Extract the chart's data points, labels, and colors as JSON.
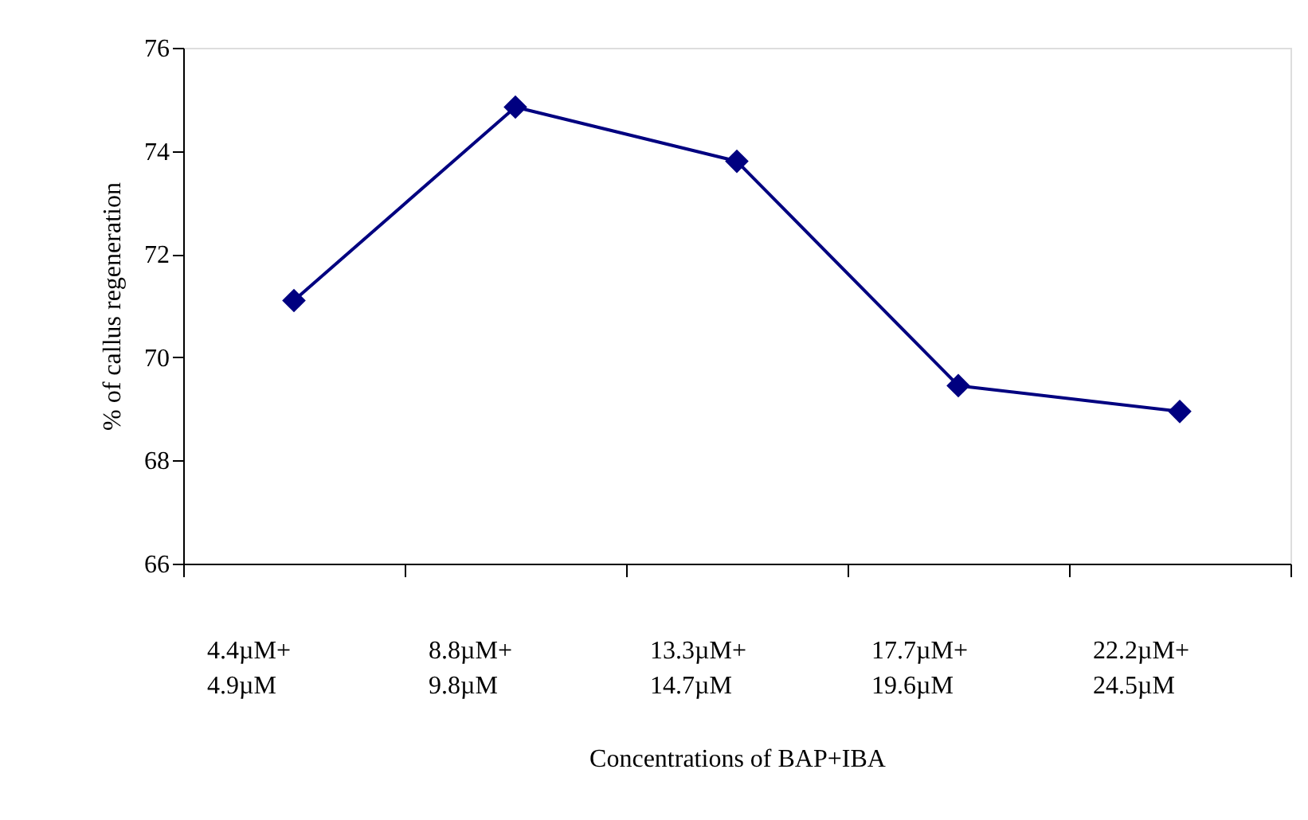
{
  "chart_data": {
    "type": "line",
    "categories": [
      "4.4µM+ 4.9µM",
      "8.8µM+ 9.8µM",
      "13.3µM+ 14.7µM",
      "17.7µM+ 19.6µM",
      "22.2µM+ 24.5µM"
    ],
    "series": [
      {
        "color": "#000080",
        "values": [
          71.1,
          74.85,
          73.8,
          69.45,
          68.95
        ]
      }
    ],
    "xlabel": "Concentrations of BAP+IBA",
    "ylabel": "% of callus regeneration",
    "ylim": [
      66,
      76
    ],
    "yticks": [
      66,
      68,
      70,
      72,
      74,
      76
    ],
    "grid": false,
    "legend": false,
    "marker": "diamond",
    "line_style": "solid"
  }
}
